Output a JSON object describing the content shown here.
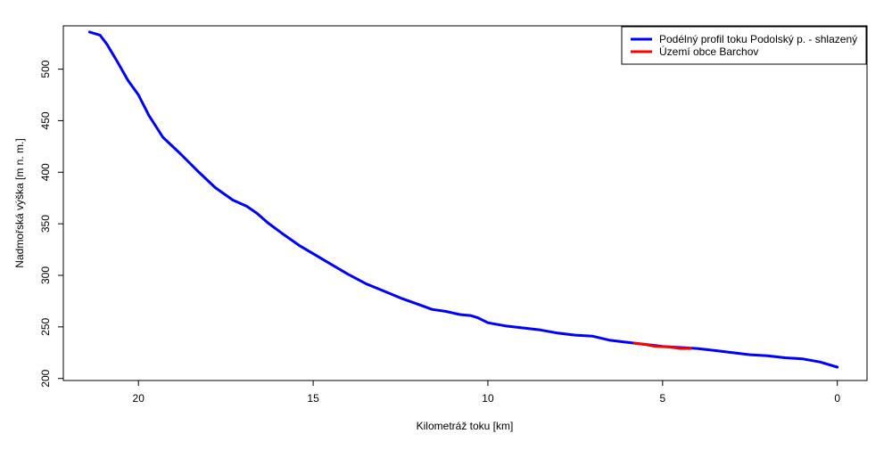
{
  "chart_data": {
    "type": "line",
    "title": "",
    "xlabel": "Kilometráž toku [km]",
    "ylabel": "Nadmořská výška [m n. m.]",
    "xlim": [
      22.15,
      -0.85
    ],
    "ylim": [
      198,
      542
    ],
    "x_reversed": true,
    "grid": false,
    "legend_position": "top-right",
    "xticks": [
      20,
      15,
      10,
      5,
      0
    ],
    "yticks": [
      200,
      250,
      300,
      350,
      400,
      450,
      500
    ],
    "series": [
      {
        "name": "Podélný profil toku Podolský p. - shlazený",
        "color": "#0000ff",
        "x": [
          21.4,
          21.1,
          20.9,
          20.6,
          20.3,
          20.0,
          19.7,
          19.3,
          18.8,
          18.3,
          17.8,
          17.3,
          16.9,
          16.6,
          16.3,
          15.9,
          15.4,
          15.0,
          14.5,
          14.0,
          13.5,
          13.0,
          12.5,
          12.0,
          11.6,
          11.2,
          10.8,
          10.5,
          10.3,
          10.0,
          9.5,
          9.0,
          8.5,
          8.0,
          7.5,
          7.0,
          6.5,
          6.0,
          5.5,
          5.0,
          4.5,
          4.0,
          3.5,
          3.0,
          2.5,
          2.0,
          1.5,
          1.0,
          0.5,
          0.0
        ],
        "y": [
          536,
          533,
          524,
          507,
          489,
          475,
          455,
          434,
          418,
          401,
          385,
          373,
          367,
          360,
          351,
          341,
          329,
          321,
          311,
          301,
          292,
          285,
          278,
          272,
          267,
          265,
          262,
          261,
          259,
          254,
          251,
          249,
          247,
          244,
          242,
          241,
          237,
          235,
          233,
          231,
          230,
          229,
          227,
          225,
          223,
          222,
          220,
          219,
          216,
          211
        ]
      },
      {
        "name": "Území obce Barchov",
        "color": "#ff0000",
        "x": [
          5.8,
          5.5,
          5.2,
          4.8,
          4.5,
          4.2
        ],
        "y": [
          234,
          233,
          231,
          230.5,
          229,
          229
        ]
      }
    ]
  }
}
